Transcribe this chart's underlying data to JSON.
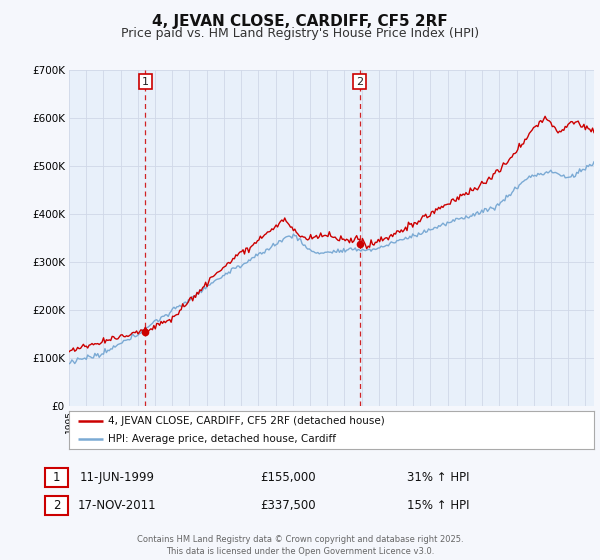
{
  "title": "4, JEVAN CLOSE, CARDIFF, CF5 2RF",
  "subtitle": "Price paid vs. HM Land Registry's House Price Index (HPI)",
  "legend_line1": "4, JEVAN CLOSE, CARDIFF, CF5 2RF (detached house)",
  "legend_line2": "HPI: Average price, detached house, Cardiff",
  "marker1_date": "11-JUN-1999",
  "marker1_price": "£155,000",
  "marker1_hpi": "31% ↑ HPI",
  "marker1_x": 1999.44,
  "marker2_date": "17-NOV-2011",
  "marker2_price": "£337,500",
  "marker2_hpi": "15% ↑ HPI",
  "marker2_x": 2011.88,
  "marker1_y": 155000,
  "marker2_y": 337500,
  "footer": "Contains HM Land Registry data © Crown copyright and database right 2025.\nThis data is licensed under the Open Government Licence v3.0.",
  "ylim": [
    0,
    700000
  ],
  "yticks": [
    0,
    100000,
    200000,
    300000,
    400000,
    500000,
    600000,
    700000
  ],
  "ytick_labels": [
    "£0",
    "£100K",
    "£200K",
    "£300K",
    "£400K",
    "£500K",
    "£600K",
    "£700K"
  ],
  "background_color": "#f5f7fc",
  "plot_bg_color": "#e8f0fa",
  "red_line_color": "#cc0000",
  "blue_line_color": "#7baad4",
  "vline_color": "#cc0000",
  "grid_color": "#d0d8e8",
  "title_fontsize": 11,
  "subtitle_fontsize": 9,
  "xmin": 1995,
  "xmax": 2025.5
}
